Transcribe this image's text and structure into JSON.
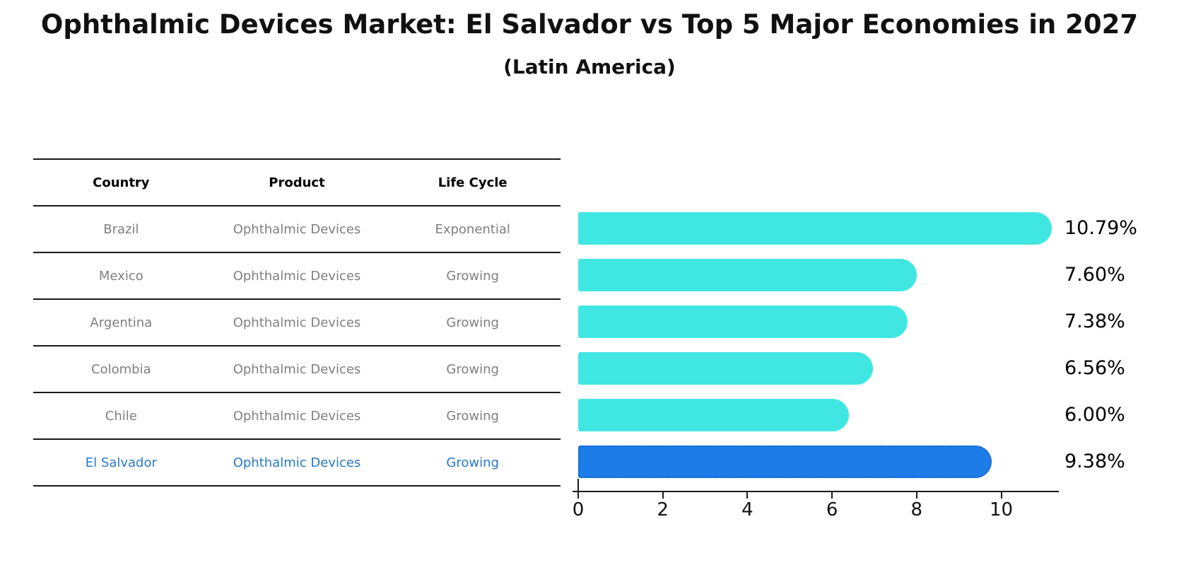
{
  "title": "Ophthalmic Devices Market: El Salvador vs Top 5 Major Economies in 2027",
  "subtitle": "(Latin America)",
  "table": {
    "headers": [
      "Country",
      "Product",
      "Life Cycle"
    ],
    "rows": [
      {
        "country": "Brazil",
        "product": "Ophthalmic Devices",
        "life_cycle": "Exponential",
        "highlight": false
      },
      {
        "country": "Mexico",
        "product": "Ophthalmic Devices",
        "life_cycle": "Growing",
        "highlight": false
      },
      {
        "country": "Argentina",
        "product": "Ophthalmic Devices",
        "life_cycle": "Growing",
        "highlight": false
      },
      {
        "country": "Colombia",
        "product": "Ophthalmic Devices",
        "life_cycle": "Growing",
        "highlight": false
      },
      {
        "country": "Chile",
        "product": "Ophthalmic Devices",
        "life_cycle": "Growing",
        "highlight": false
      },
      {
        "country": "El Salvador",
        "product": "Ophthalmic Devices",
        "life_cycle": "Growing",
        "highlight": true
      }
    ]
  },
  "chart_data": {
    "type": "bar",
    "orientation": "horizontal",
    "title": "Ophthalmic Devices Market: El Salvador vs Top 5 Major Economies in 2027",
    "subtitle": "(Latin America)",
    "categories": [
      "Brazil",
      "Mexico",
      "Argentina",
      "Colombia",
      "Chile",
      "El Salvador"
    ],
    "values": [
      10.79,
      7.6,
      7.38,
      6.56,
      6.0,
      9.38
    ],
    "value_labels": [
      "10.79%",
      "7.60%",
      "7.38%",
      "6.56%",
      "6.00%",
      "9.38%"
    ],
    "highlight_index": 5,
    "xlabel": "",
    "ylabel": "",
    "xticks": [
      0,
      2,
      4,
      6,
      8,
      10
    ],
    "xlim": [
      0,
      11.4
    ],
    "grid": false,
    "legend": false,
    "bar_color": "#40e7e2",
    "highlight_bar_color": "#1e7ce8",
    "highlight_border_color": "#1464cf",
    "highlight_text_color": "#2878c8",
    "body_text_color": "#7f7f7f",
    "label_text_color": "#000000"
  }
}
